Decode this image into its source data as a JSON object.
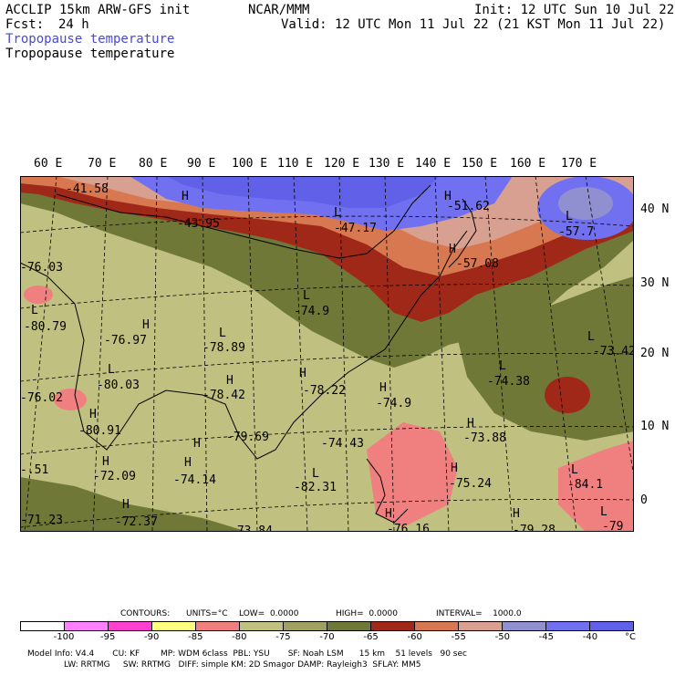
{
  "header": {
    "line1_left": "ACCLIP 15km ARW-GFS init",
    "line1_center": "NCAR/MMM",
    "line1_right": "Init: 12 UTC Sun 10 Jul 22",
    "fcst_label": "Fcst:",
    "fcst_value": "24 h",
    "valid": "Valid: 12 UTC Mon 11 Jul 22 (21 KST Mon 11 Jul 22)",
    "field_title_blue": "Tropopause temperature",
    "field_title_black": "Tropopause temperature"
  },
  "axes": {
    "lon_labels": [
      "60 E",
      "70 E",
      "80 E",
      "90 E",
      "100 E",
      "110 E",
      "120 E",
      "130 E",
      "140 E",
      "150 E",
      "160 E",
      "170 E"
    ],
    "lat_labels": [
      "40 N",
      "30 N",
      "20 N",
      "10 N",
      "0"
    ]
  },
  "map_annotations": {
    "values": [
      "-41.58",
      "-43.95",
      "-47.17",
      "-51.62",
      "-57.7",
      "-57.08",
      "-76.03",
      "-74.9",
      "-80.79",
      "-76.97",
      "-78.89",
      "-73.42",
      "-74.38",
      "-80.03",
      "-78.42",
      "-78.22",
      "-74.9",
      "-76.02",
      "-80.91",
      "-79.69",
      "-74.43",
      "-73.88",
      "-.51",
      "-72.09",
      "-74.14",
      "-82.31",
      "-75.24",
      "-84.1",
      "-71.23",
      "-72.37",
      "-73.84",
      "-76.16",
      "-79.28",
      "-79"
    ],
    "markers": [
      "H",
      "L"
    ]
  },
  "contour_info": {
    "contours_label": "CONTOURS:",
    "units": "UNITS=°C",
    "low": "LOW=  0.0000",
    "high": "HIGH=  0.0000",
    "interval": "INTERVAL=    1000.0"
  },
  "legend": {
    "colors": [
      "#ffffff",
      "#ff80ff",
      "#ff40d0",
      "#ffff80",
      "#f08080",
      "#c0c080",
      "#a0a060",
      "#707838",
      "#a02818",
      "#d87850",
      "#d8a090",
      "#9090d0",
      "#7070f0",
      "#6060e8"
    ],
    "tick_labels": [
      "-100",
      "-95",
      "-90",
      "-85",
      "-80",
      "-75",
      "-70",
      "-65",
      "-60",
      "-55",
      "-50",
      "-45",
      "-40",
      "°C"
    ]
  },
  "footer": {
    "line1": "Model Info: V4.4       CU: KF        MP: WDM 6class  PBL: YSU       SF: Noah LSM      15 km    51 levels   90 sec",
    "line2": "              LW: RRTMG     SW: RRTMG   DIFF: simple KM: 2D Smagor DAMP: Rayleigh3  SFLAY: MM5"
  }
}
